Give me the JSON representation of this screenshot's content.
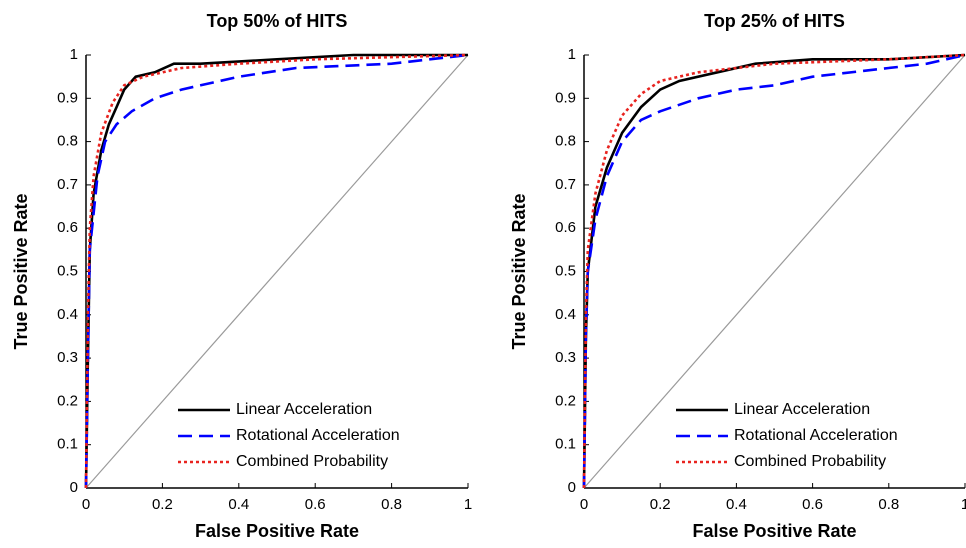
{
  "chart_data": [
    {
      "type": "line",
      "title": "Top 50% of HITS",
      "x_label": "False Positive Rate",
      "y_label": "True Positive Rate",
      "xlim": [
        0,
        1
      ],
      "ylim": [
        0,
        1
      ],
      "xticks": [
        0,
        0.2,
        0.4,
        0.6,
        0.8,
        1
      ],
      "yticks": [
        0,
        0.1,
        0.2,
        0.3,
        0.4,
        0.5,
        0.6,
        0.7,
        0.8,
        0.9,
        1
      ],
      "legend": "lower right",
      "series": [
        {
          "name": "Linear Acceleration",
          "color": "#000000",
          "style": "solid",
          "x": [
            0,
            0.005,
            0.01,
            0.02,
            0.04,
            0.06,
            0.08,
            0.1,
            0.13,
            0.18,
            0.23,
            0.3,
            0.5,
            0.7,
            1
          ],
          "values": [
            0,
            0.3,
            0.55,
            0.68,
            0.78,
            0.84,
            0.88,
            0.92,
            0.95,
            0.96,
            0.98,
            0.98,
            0.99,
            1,
            1
          ]
        },
        {
          "name": "Rotational Acceleration",
          "color": "#0000ff",
          "style": "dashed",
          "x": [
            0,
            0.005,
            0.01,
            0.03,
            0.05,
            0.08,
            0.12,
            0.18,
            0.25,
            0.4,
            0.55,
            0.8,
            0.9,
            1
          ],
          "values": [
            0,
            0.3,
            0.55,
            0.72,
            0.8,
            0.84,
            0.87,
            0.9,
            0.92,
            0.95,
            0.97,
            0.98,
            0.99,
            1
          ]
        },
        {
          "name": "Combined Probability",
          "color": "#e8231f",
          "style": "dotted",
          "x": [
            0,
            0.005,
            0.01,
            0.02,
            0.04,
            0.07,
            0.1,
            0.15,
            0.25,
            0.4,
            0.6,
            1
          ],
          "values": [
            0,
            0.4,
            0.6,
            0.72,
            0.82,
            0.89,
            0.93,
            0.95,
            0.97,
            0.98,
            0.99,
            1
          ]
        }
      ]
    },
    {
      "type": "line",
      "title": "Top 25% of HITS",
      "x_label": "False Positive Rate",
      "y_label": "True Positive Rate",
      "xlim": [
        0,
        1
      ],
      "ylim": [
        0,
        1
      ],
      "xticks": [
        0,
        0.2,
        0.4,
        0.6,
        0.8,
        1
      ],
      "yticks": [
        0,
        0.1,
        0.2,
        0.3,
        0.4,
        0.5,
        0.6,
        0.7,
        0.8,
        0.9,
        1
      ],
      "legend": "lower right",
      "series": [
        {
          "name": "Linear Acceleration",
          "color": "#000000",
          "style": "solid",
          "x": [
            0,
            0.005,
            0.01,
            0.03,
            0.06,
            0.1,
            0.15,
            0.2,
            0.25,
            0.35,
            0.45,
            0.6,
            0.8,
            1
          ],
          "values": [
            0,
            0.35,
            0.5,
            0.65,
            0.74,
            0.82,
            0.88,
            0.92,
            0.94,
            0.96,
            0.98,
            0.99,
            0.99,
            1
          ]
        },
        {
          "name": "Rotational Acceleration",
          "color": "#0000ff",
          "style": "dashed",
          "x": [
            0,
            0.005,
            0.01,
            0.03,
            0.06,
            0.1,
            0.15,
            0.2,
            0.3,
            0.4,
            0.5,
            0.6,
            0.8,
            0.9,
            1
          ],
          "values": [
            0,
            0.35,
            0.5,
            0.62,
            0.72,
            0.8,
            0.85,
            0.87,
            0.9,
            0.92,
            0.93,
            0.95,
            0.97,
            0.98,
            1
          ]
        },
        {
          "name": "Combined Probability",
          "color": "#e8231f",
          "style": "dotted",
          "x": [
            0,
            0.005,
            0.01,
            0.03,
            0.06,
            0.1,
            0.15,
            0.2,
            0.3,
            0.5,
            0.8,
            1
          ],
          "values": [
            0,
            0.4,
            0.55,
            0.68,
            0.78,
            0.86,
            0.91,
            0.94,
            0.96,
            0.98,
            0.99,
            1
          ]
        }
      ]
    }
  ]
}
